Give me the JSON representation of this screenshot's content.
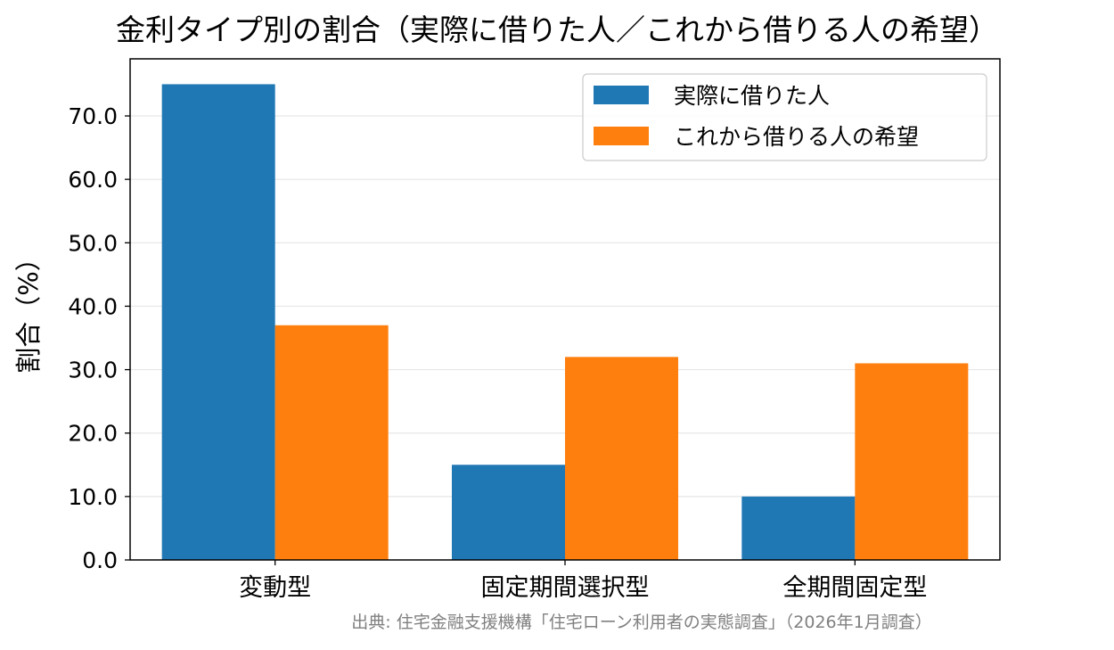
{
  "chart_data": {
    "type": "bar",
    "title": "金利タイプ別の割合（実際に借りた人／これから借りる人の希望）",
    "xlabel": "",
    "ylabel": "割合（%）",
    "categories": [
      "変動型",
      "固定期間選択型",
      "全期間固定型"
    ],
    "series": [
      {
        "name": "実際に借りた人",
        "values": [
          75,
          15,
          10
        ],
        "color": "#1f77b4"
      },
      {
        "name": "これから借りる人の希望",
        "values": [
          37,
          32,
          31
        ],
        "color": "#ff7f0e"
      }
    ],
    "ylim": [
      0,
      79
    ],
    "yticks": [
      "0.0",
      "10.0",
      "20.0",
      "30.0",
      "40.0",
      "50.0",
      "60.0",
      "70.0"
    ],
    "grid": "horizontal",
    "legend_position": "top-right",
    "source": "出典: 住宅金融支援機構「住宅ローン利用者の実態調査」（2026年1月調査）"
  }
}
